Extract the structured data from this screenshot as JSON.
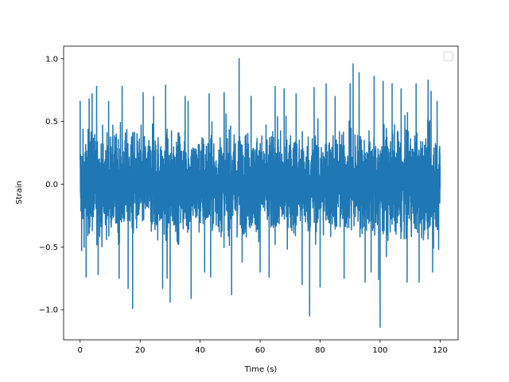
{
  "chart_data": {
    "type": "line",
    "xlabel": "Time (s)",
    "ylabel": "Strain",
    "xlim": [
      -5.5,
      126
    ],
    "ylim": [
      -1.24,
      1.1
    ],
    "x_ticks": [
      0,
      20,
      40,
      60,
      80,
      100,
      120
    ],
    "x_tick_labels": [
      "0",
      "20",
      "40",
      "60",
      "80",
      "100",
      "120"
    ],
    "y_ticks": [
      -1.0,
      -0.5,
      0.0,
      0.5,
      1.0
    ],
    "y_tick_labels": [
      "−1.0",
      "−0.5",
      "0.0",
      "0.5",
      "1.0"
    ],
    "grid": false,
    "legend": {
      "placement": "top-right",
      "entries": []
    },
    "series": [
      {
        "color": "#1f77b4",
        "x_start": 0,
        "x_end": 120,
        "typical_range": [
          -0.5,
          0.5
        ],
        "peaks": [
          [
            0.0,
            0.66
          ],
          [
            0.5,
            -0.53
          ],
          [
            2.0,
            -0.74
          ],
          [
            3.0,
            0.68
          ],
          [
            4.0,
            0.72
          ],
          [
            5.5,
            0.78
          ],
          [
            6.0,
            -0.72
          ],
          [
            9.5,
            0.66
          ],
          [
            13.0,
            -0.75
          ],
          [
            14.0,
            0.78
          ],
          [
            16.0,
            -0.83
          ],
          [
            17.5,
            -0.99
          ],
          [
            21.0,
            0.73
          ],
          [
            24.5,
            0.7
          ],
          [
            27.5,
            -0.83
          ],
          [
            28.5,
            0.79
          ],
          [
            29.0,
            -0.75
          ],
          [
            30.0,
            -0.94
          ],
          [
            35.0,
            0.7
          ],
          [
            36.0,
            0.66
          ],
          [
            37.0,
            -0.91
          ],
          [
            41.5,
            -0.7
          ],
          [
            43.0,
            0.72
          ],
          [
            43.5,
            -0.74
          ],
          [
            48.0,
            0.73
          ],
          [
            50.5,
            -0.88
          ],
          [
            53.0,
            1.0
          ],
          [
            54.0,
            -0.62
          ],
          [
            57.0,
            0.7
          ],
          [
            60.0,
            -0.7
          ],
          [
            63.0,
            -0.74
          ],
          [
            65.0,
            0.78
          ],
          [
            68.0,
            0.76
          ],
          [
            72.0,
            0.72
          ],
          [
            74.0,
            -0.8
          ],
          [
            76.5,
            -1.05
          ],
          [
            78.0,
            0.77
          ],
          [
            80.0,
            -0.82
          ],
          [
            82.0,
            0.8
          ],
          [
            85.0,
            0.7
          ],
          [
            88.0,
            -0.75
          ],
          [
            90.0,
            0.8
          ],
          [
            91.0,
            0.96
          ],
          [
            93.0,
            0.89
          ],
          [
            95.0,
            -0.78
          ],
          [
            97.0,
            -0.7
          ],
          [
            98.0,
            0.86
          ],
          [
            99.5,
            -0.76
          ],
          [
            100.0,
            -1.14
          ],
          [
            101.0,
            0.82
          ],
          [
            104.0,
            0.8
          ],
          [
            107.0,
            0.76
          ],
          [
            109.0,
            -0.78
          ],
          [
            112.0,
            0.8
          ],
          [
            113.0,
            -0.78
          ],
          [
            116.0,
            0.83
          ],
          [
            117.0,
            0.74
          ],
          [
            117.5,
            -0.7
          ],
          [
            119.0,
            0.66
          ],
          [
            119.5,
            -0.52
          ]
        ]
      }
    ]
  }
}
